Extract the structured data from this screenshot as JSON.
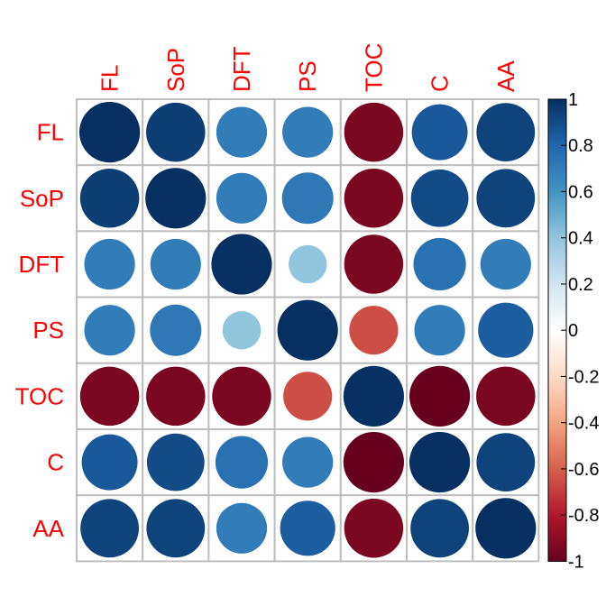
{
  "chart_data": {
    "type": "heatmap",
    "title": "",
    "variables": [
      "FL",
      "SoP",
      "DFT",
      "PS",
      "TOC",
      "C",
      "AA"
    ],
    "matrix": [
      [
        1.0,
        0.95,
        0.7,
        0.7,
        -0.95,
        0.85,
        0.93
      ],
      [
        0.95,
        1.0,
        0.7,
        0.72,
        -0.95,
        0.9,
        0.93
      ],
      [
        0.7,
        0.7,
        1.0,
        0.4,
        -0.95,
        0.75,
        0.7
      ],
      [
        0.7,
        0.72,
        0.4,
        1.0,
        -0.65,
        0.7,
        0.83
      ],
      [
        -0.95,
        -0.95,
        -0.95,
        -0.65,
        1.0,
        -1.0,
        -0.95
      ],
      [
        0.85,
        0.9,
        0.75,
        0.7,
        -1.0,
        1.0,
        0.93
      ],
      [
        0.93,
        0.93,
        0.7,
        0.83,
        -0.95,
        0.93,
        1.0
      ]
    ],
    "colorbar": {
      "ticks": [
        "1",
        "0.8",
        "0.6",
        "0.4",
        "0.2",
        "0",
        "-0.2",
        "-0.4",
        "-0.6",
        "-0.8",
        "-1"
      ],
      "range": [
        -1,
        1
      ]
    },
    "palette": [
      "#67001F",
      "#B2182B",
      "#D6604D",
      "#F4A582",
      "#FDDBC7",
      "#FFFFFF",
      "#D1E5F0",
      "#92C5DE",
      "#4393C3",
      "#2166AC",
      "#053061"
    ],
    "label_color": "#FF0000",
    "grid_color": "#BEBEBE"
  }
}
